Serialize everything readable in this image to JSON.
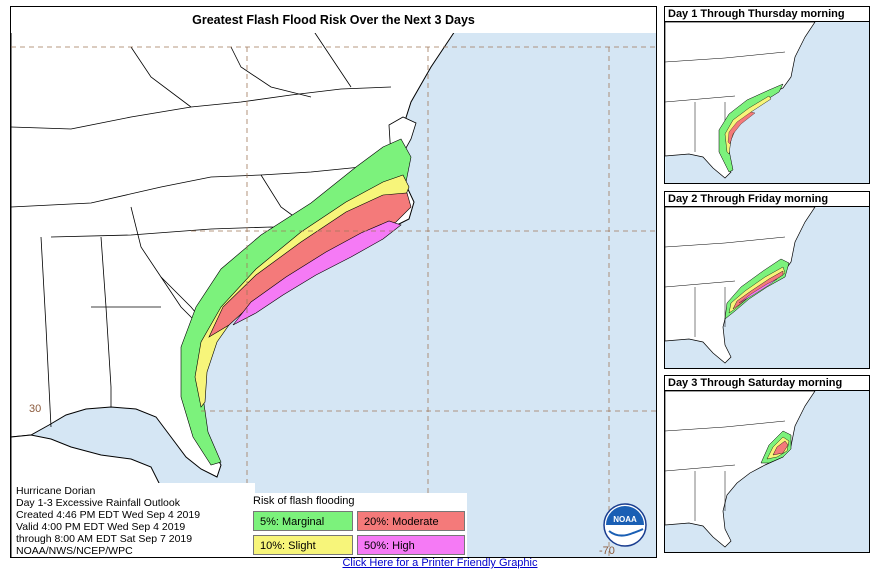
{
  "main": {
    "title": "Greatest Flash Flood Risk Over the Next 3 Days",
    "lat_label": "30",
    "lon_label": "-70"
  },
  "info": {
    "lines": [
      "Hurricane Dorian",
      "Day 1-3 Excessive Rainfall Outlook",
      "Created 4:46 PM EDT Wed Sep 4 2019",
      "Valid 4:00 PM EDT Wed Sep 4 2019",
      "through 8:00 AM EDT Sat Sep 7 2019",
      "NOAA/NWS/NCEP/WPC"
    ]
  },
  "legend": {
    "title": "Risk of flash flooding",
    "items": [
      {
        "label": "5%: Marginal",
        "color": "#7cf27c"
      },
      {
        "label": "20%: Moderate",
        "color": "#f47a7a"
      },
      {
        "label": "10%: Slight",
        "color": "#f7f57a"
      },
      {
        "label": "50%: High",
        "color": "#f57af5"
      }
    ]
  },
  "logo": {
    "text": "NOAA"
  },
  "panels": [
    {
      "title": "Day 1 Through Thursday morning"
    },
    {
      "title": "Day 2 Through Friday morning"
    },
    {
      "title": "Day 3 Through Saturday morning"
    }
  ],
  "footer": {
    "link_text": "Click Here for a Printer Friendly Graphic"
  },
  "colors": {
    "ocean": "#d5e6f4",
    "land": "#ffffff",
    "grid": "#a0785a"
  }
}
